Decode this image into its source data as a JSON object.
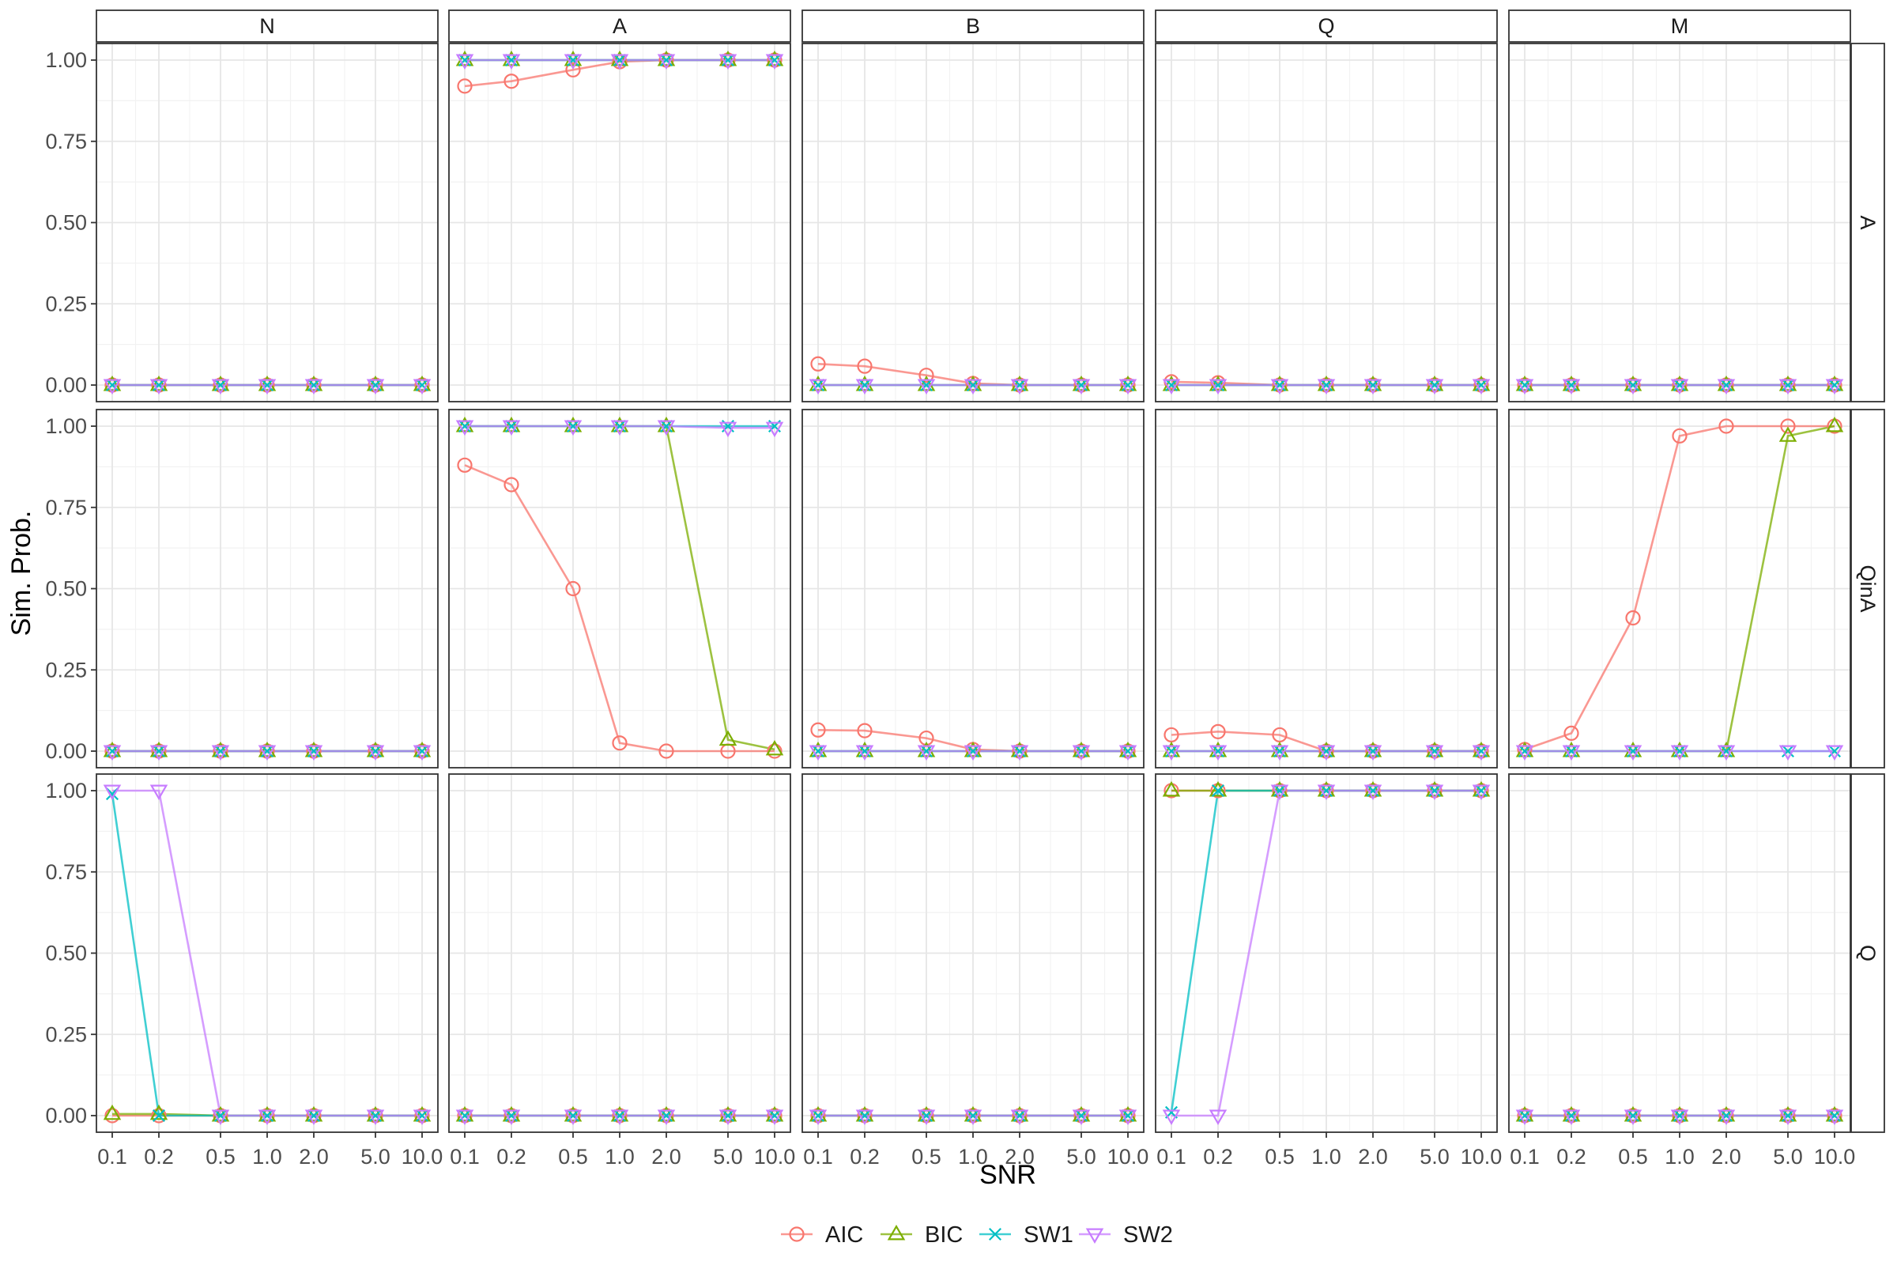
{
  "chart_data": {
    "type": "line",
    "xlabel": "SNR",
    "ylabel": "Sim. Prob.",
    "x": [
      0.1,
      0.2,
      0.5,
      1.0,
      2.0,
      5.0,
      10.0
    ],
    "x_tick_labels": [
      "0.1",
      "0.2",
      "0.5",
      "1.0",
      "2.0",
      "5.0",
      "10.0"
    ],
    "x_scale": "log",
    "ylim": [
      0,
      1
    ],
    "y_tick_labels": [
      "0.00",
      "0.25",
      "0.50",
      "0.75",
      "1.00"
    ],
    "y_ticks": [
      0,
      0.25,
      0.5,
      0.75,
      1
    ],
    "grid": true,
    "legend_position": "bottom",
    "col_facets": [
      "N",
      "A",
      "B",
      "Q",
      "M"
    ],
    "row_facets": [
      "A",
      "QinA",
      "Q"
    ],
    "series_styles": [
      {
        "name": "AIC",
        "color": "#F8766D",
        "shape": "circle"
      },
      {
        "name": "BIC",
        "color": "#7CAE00",
        "shape": "triangle-up"
      },
      {
        "name": "SW1",
        "color": "#00BFC4",
        "shape": "cross"
      },
      {
        "name": "SW2",
        "color": "#C77CFF",
        "shape": "triangle-down"
      }
    ],
    "panels": [
      {
        "row": "A",
        "col": "N",
        "series": {
          "AIC": [
            0,
            0,
            0,
            0,
            0,
            0,
            0
          ],
          "BIC": [
            0,
            0,
            0,
            0,
            0,
            0,
            0
          ],
          "SW1": [
            0,
            0,
            0,
            0,
            0,
            0,
            0
          ],
          "SW2": [
            0,
            0,
            0,
            0,
            0,
            0,
            0
          ]
        }
      },
      {
        "row": "A",
        "col": "A",
        "series": {
          "AIC": [
            0.92,
            0.935,
            0.97,
            0.995,
            1,
            1,
            1
          ],
          "BIC": [
            1,
            1,
            1,
            1,
            1,
            1,
            1
          ],
          "SW1": [
            1,
            1,
            1,
            1,
            1,
            1,
            1
          ],
          "SW2": [
            1,
            1,
            1,
            1,
            1,
            1,
            1
          ]
        }
      },
      {
        "row": "A",
        "col": "B",
        "series": {
          "AIC": [
            0.065,
            0.058,
            0.03,
            0.005,
            0,
            0,
            0
          ],
          "BIC": [
            0,
            0,
            0,
            0,
            0,
            0,
            0
          ],
          "SW1": [
            0,
            0,
            0,
            0,
            0,
            0,
            0
          ],
          "SW2": [
            0,
            0,
            0,
            0,
            0,
            0,
            0
          ]
        }
      },
      {
        "row": "A",
        "col": "Q",
        "series": {
          "AIC": [
            0.01,
            0.007,
            0,
            0,
            0,
            0,
            0
          ],
          "BIC": [
            0,
            0,
            0,
            0,
            0,
            0,
            0
          ],
          "SW1": [
            0,
            0,
            0,
            0,
            0,
            0,
            0
          ],
          "SW2": [
            0,
            0,
            0,
            0,
            0,
            0,
            0
          ]
        }
      },
      {
        "row": "A",
        "col": "M",
        "series": {
          "AIC": [
            0,
            0,
            0,
            0,
            0,
            0,
            0
          ],
          "BIC": [
            0,
            0,
            0,
            0,
            0,
            0,
            0
          ],
          "SW1": [
            0,
            0,
            0,
            0,
            0,
            0,
            0
          ],
          "SW2": [
            0,
            0,
            0,
            0,
            0,
            0,
            0
          ]
        }
      },
      {
        "row": "QinA",
        "col": "N",
        "series": {
          "AIC": [
            0,
            0,
            0,
            0,
            0,
            0,
            0
          ],
          "BIC": [
            0,
            0,
            0,
            0,
            0,
            0,
            0
          ],
          "SW1": [
            0,
            0,
            0,
            0,
            0,
            0,
            0
          ],
          "SW2": [
            0,
            0,
            0,
            0,
            0,
            0,
            0
          ]
        }
      },
      {
        "row": "QinA",
        "col": "A",
        "series": {
          "AIC": [
            0.88,
            0.82,
            0.5,
            0.025,
            0,
            0,
            0
          ],
          "BIC": [
            1,
            1,
            1,
            1,
            1,
            0.035,
            0.005
          ],
          "SW1": [
            1,
            1,
            1,
            1,
            1,
            1,
            1
          ],
          "SW2": [
            1,
            1,
            1,
            1,
            1,
            0.995,
            0.995
          ]
        }
      },
      {
        "row": "QinA",
        "col": "B",
        "series": {
          "AIC": [
            0.065,
            0.063,
            0.04,
            0.005,
            0,
            0,
            0
          ],
          "BIC": [
            0,
            0,
            0,
            0,
            0,
            0,
            0
          ],
          "SW1": [
            0,
            0,
            0,
            0,
            0,
            0,
            0
          ],
          "SW2": [
            0,
            0,
            0,
            0,
            0,
            0,
            0
          ]
        }
      },
      {
        "row": "QinA",
        "col": "Q",
        "series": {
          "AIC": [
            0.05,
            0.06,
            0.05,
            0,
            0,
            0,
            0
          ],
          "BIC": [
            0,
            0,
            0,
            0,
            0,
            0,
            0
          ],
          "SW1": [
            0,
            0,
            0,
            0,
            0,
            0,
            0
          ],
          "SW2": [
            0,
            0,
            0,
            0,
            0,
            0,
            0
          ]
        }
      },
      {
        "row": "QinA",
        "col": "M",
        "series": {
          "AIC": [
            0.005,
            0.055,
            0.41,
            0.97,
            1,
            1,
            1
          ],
          "BIC": [
            0,
            0,
            0,
            0,
            0,
            0.97,
            1
          ],
          "SW1": [
            0,
            0,
            0,
            0,
            0,
            0,
            0
          ],
          "SW2": [
            0,
            0,
            0,
            0,
            0,
            0,
            0
          ]
        }
      },
      {
        "row": "Q",
        "col": "N",
        "series": {
          "AIC": [
            0,
            0,
            0,
            0,
            0,
            0,
            0
          ],
          "BIC": [
            0.005,
            0.005,
            0,
            0,
            0,
            0,
            0
          ],
          "SW1": [
            0.99,
            0,
            0,
            0,
            0,
            0,
            0
          ],
          "SW2": [
            1,
            1,
            0,
            0,
            0,
            0,
            0
          ]
        }
      },
      {
        "row": "Q",
        "col": "A",
        "series": {
          "AIC": [
            0,
            0,
            0,
            0,
            0,
            0,
            0
          ],
          "BIC": [
            0,
            0,
            0,
            0,
            0,
            0,
            0
          ],
          "SW1": [
            0,
            0,
            0,
            0,
            0,
            0,
            0
          ],
          "SW2": [
            0,
            0,
            0,
            0,
            0,
            0,
            0
          ]
        }
      },
      {
        "row": "Q",
        "col": "B",
        "series": {
          "AIC": [
            0,
            0,
            0,
            0,
            0,
            0,
            0
          ],
          "BIC": [
            0,
            0,
            0,
            0,
            0,
            0,
            0
          ],
          "SW1": [
            0,
            0,
            0,
            0,
            0,
            0,
            0
          ],
          "SW2": [
            0,
            0,
            0,
            0,
            0,
            0,
            0
          ]
        }
      },
      {
        "row": "Q",
        "col": "Q",
        "series": {
          "AIC": [
            1,
            1,
            1,
            1,
            1,
            1,
            1
          ],
          "BIC": [
            1,
            1,
            1,
            1,
            1,
            1,
            1
          ],
          "SW1": [
            0.01,
            1,
            1,
            1,
            1,
            1,
            1
          ],
          "SW2": [
            0,
            0,
            1,
            1,
            1,
            1,
            1
          ]
        }
      },
      {
        "row": "Q",
        "col": "M",
        "series": {
          "AIC": [
            0,
            0,
            0,
            0,
            0,
            0,
            0
          ],
          "BIC": [
            0,
            0,
            0,
            0,
            0,
            0,
            0
          ],
          "SW1": [
            0,
            0,
            0,
            0,
            0,
            0,
            0
          ],
          "SW2": [
            0,
            0,
            0,
            0,
            0,
            0,
            0
          ]
        }
      }
    ]
  }
}
